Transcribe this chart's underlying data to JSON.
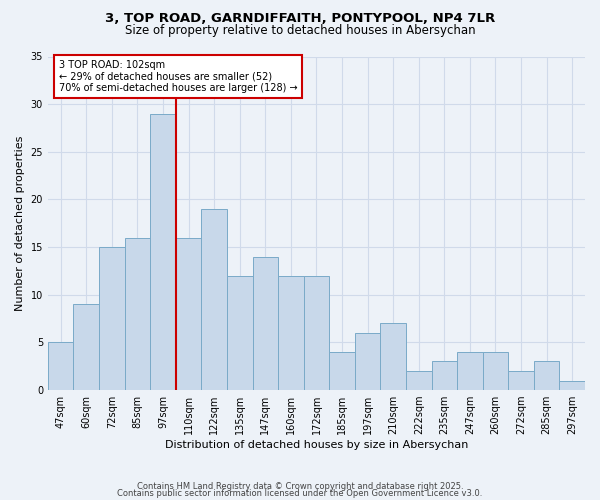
{
  "title_line1": "3, TOP ROAD, GARNDIFFAITH, PONTYPOOL, NP4 7LR",
  "title_line2": "Size of property relative to detached houses in Abersychan",
  "xlabel": "Distribution of detached houses by size in Abersychan",
  "ylabel": "Number of detached properties",
  "bar_labels": [
    "47sqm",
    "60sqm",
    "72sqm",
    "85sqm",
    "97sqm",
    "110sqm",
    "122sqm",
    "135sqm",
    "147sqm",
    "160sqm",
    "172sqm",
    "185sqm",
    "197sqm",
    "210sqm",
    "222sqm",
    "235sqm",
    "247sqm",
    "260sqm",
    "272sqm",
    "285sqm",
    "297sqm"
  ],
  "bar_values": [
    5,
    9,
    15,
    16,
    29,
    16,
    19,
    12,
    14,
    12,
    12,
    4,
    6,
    7,
    2,
    3,
    4,
    4,
    2,
    3,
    1
  ],
  "bar_color": "#c8d8ea",
  "bar_edge_color": "#7aaac8",
  "grid_color": "#d0daea",
  "background_color": "#edf2f8",
  "red_line_x": 4.5,
  "annotation_title": "3 TOP ROAD: 102sqm",
  "annotation_line1": "← 29% of detached houses are smaller (52)",
  "annotation_line2": "70% of semi-detached houses are larger (128) →",
  "annotation_box_color": "#ffffff",
  "annotation_box_edge": "#cc0000",
  "red_line_color": "#cc0000",
  "footer_line1": "Contains HM Land Registry data © Crown copyright and database right 2025.",
  "footer_line2": "Contains public sector information licensed under the Open Government Licence v3.0.",
  "ylim": [
    0,
    35
  ],
  "yticks": [
    0,
    5,
    10,
    15,
    20,
    25,
    30,
    35
  ],
  "title_fontsize": 9.5,
  "subtitle_fontsize": 8.5,
  "axis_label_fontsize": 8,
  "tick_fontsize": 7,
  "annotation_fontsize": 7,
  "footer_fontsize": 6
}
